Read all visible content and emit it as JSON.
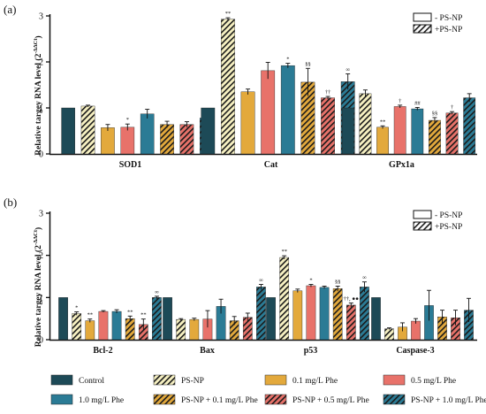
{
  "colors": {
    "control": "#1d4a57",
    "phe01": "#e3a93c",
    "phe05": "#e8726a",
    "phe10": "#2b7b95",
    "psnp": "#f7f1c2",
    "axis": "#111111"
  },
  "legend": {
    "items": [
      {
        "label": "Control",
        "color": "#1d4a57",
        "hatch": false
      },
      {
        "label": "PS-NP",
        "color": "#f7f1c2",
        "hatch": true
      },
      {
        "label": "0.1 mg/L Phe",
        "color": "#e3a93c",
        "hatch": false
      },
      {
        "label": "0.5 mg/L Phe",
        "color": "#e8726a",
        "hatch": false
      },
      {
        "label": "1.0 mg/L Phe",
        "color": "#2b7b95",
        "hatch": false
      },
      {
        "label": "PS-NP + 0.1 mg/L Phe",
        "color": "#e3a93c",
        "hatch": true
      },
      {
        "label": "PS-NP + 0.5 mg/L Phe",
        "color": "#e8726a",
        "hatch": true
      },
      {
        "label": "PS-NP + 1.0 mg/L Phe",
        "color": "#2b7b95",
        "hatch": true
      }
    ]
  },
  "chart_data": [
    {
      "type": "bar",
      "panel_label": "(a)",
      "ylabel": "Relative targey RNA level (2",
      "ylabel_sup": "-ΔΔCt",
      "ylabel_close": ")",
      "ylim": [
        0,
        3
      ],
      "yticks": [
        "0",
        "1",
        "2",
        "3"
      ],
      "inset_legend": [
        "- PS-NP",
        "+PS-NP"
      ],
      "categories": [
        "SOD1",
        "Cat",
        "GPx1a"
      ],
      "series": [
        {
          "name": "Control",
          "values": [
            1.0,
            1.0,
            1.0
          ],
          "errors": [
            0,
            0,
            0
          ],
          "marks": [
            "",
            "",
            ""
          ]
        },
        {
          "name": "PS-NP",
          "values": [
            1.04,
            2.93,
            1.31
          ],
          "errors": [
            0.02,
            0.03,
            0.08
          ],
          "marks": [
            "",
            "**",
            ""
          ]
        },
        {
          "name": "0.1 mg/L Phe",
          "values": [
            0.57,
            1.35,
            0.58
          ],
          "errors": [
            0.07,
            0.06,
            0.03
          ],
          "marks": [
            "",
            "",
            "**"
          ]
        },
        {
          "name": "0.5 mg/L Phe",
          "values": [
            0.58,
            1.81,
            1.03
          ],
          "errors": [
            0.07,
            0.18,
            0.03
          ],
          "marks": [
            "*",
            "",
            "†"
          ]
        },
        {
          "name": "1.0 mg/L Phe",
          "values": [
            0.87,
            1.92,
            0.98
          ],
          "errors": [
            0.1,
            0.05,
            0.03
          ],
          "marks": [
            "",
            "*",
            "##"
          ]
        },
        {
          "name": "PS-NP + 0.1 mg/L Phe",
          "values": [
            0.64,
            1.56,
            0.73
          ],
          "errors": [
            0.07,
            0.3,
            0.06
          ],
          "marks": [
            "",
            "§§",
            "§§"
          ]
        },
        {
          "name": "PS-NP + 0.5 mg/L Phe",
          "values": [
            0.64,
            1.22,
            0.89
          ],
          "errors": [
            0.06,
            0.03,
            0.03
          ],
          "marks": [
            "",
            "††",
            "†"
          ]
        },
        {
          "name": "PS-NP + 1.0 mg/L Phe",
          "values": [
            0.78,
            1.57,
            1.22
          ],
          "errors": [
            0.12,
            0.17,
            0.09
          ],
          "marks": [
            "",
            "∞",
            ""
          ]
        }
      ]
    },
    {
      "type": "bar",
      "panel_label": "(b)",
      "ylabel": "Relative targey RNA level (2",
      "ylabel_sup": "-ΔΔCt",
      "ylabel_close": ")",
      "ylim": [
        0,
        3
      ],
      "yticks": [
        "0",
        "1",
        "2",
        "3"
      ],
      "inset_legend": [
        "- PS-NP",
        "+PS-NP"
      ],
      "categories": [
        "Bcl-2",
        "Bax",
        "p53",
        "Caspase-3"
      ],
      "series": [
        {
          "name": "Control",
          "values": [
            1.0,
            1.0,
            1.0,
            1.0
          ],
          "errors": [
            0,
            0,
            0,
            0
          ],
          "marks": [
            "",
            "",
            "",
            ""
          ]
        },
        {
          "name": "PS-NP",
          "values": [
            0.62,
            0.48,
            1.95,
            0.26
          ],
          "errors": [
            0.04,
            0.02,
            0.04,
            0.02
          ],
          "marks": [
            "*",
            "",
            "**",
            ""
          ]
        },
        {
          "name": "0.1 mg/L Phe",
          "values": [
            0.45,
            0.48,
            1.16,
            0.3
          ],
          "errors": [
            0.04,
            0.03,
            0.04,
            0.1
          ],
          "marks": [
            "**",
            "",
            "",
            ""
          ]
        },
        {
          "name": "0.5 mg/L Phe",
          "values": [
            0.67,
            0.49,
            1.28,
            0.44
          ],
          "errors": [
            0.02,
            0.2,
            0.03,
            0.06
          ],
          "marks": [
            "",
            "",
            "*",
            ""
          ]
        },
        {
          "name": "1.0 mg/L Phe",
          "values": [
            0.67,
            0.79,
            1.24,
            0.81
          ],
          "errors": [
            0.04,
            0.17,
            0.03,
            0.36
          ],
          "marks": [
            "",
            "",
            "",
            ""
          ]
        },
        {
          "name": "PS-NP + 0.1 mg/L Phe",
          "values": [
            0.5,
            0.45,
            1.21,
            0.54
          ],
          "errors": [
            0.06,
            0.1,
            0.06,
            0.16
          ],
          "marks": [
            "**",
            "",
            "§§",
            ""
          ]
        },
        {
          "name": "PS-NP + 0.5 mg/L Phe",
          "values": [
            0.36,
            0.53,
            0.82,
            0.52
          ],
          "errors": [
            0.13,
            0.1,
            0.05,
            0.18
          ],
          "marks": [
            "**",
            "",
            "††, ●●",
            ""
          ]
        },
        {
          "name": "PS-NP + 1.0 mg/L Phe",
          "values": [
            1.0,
            1.25,
            1.25,
            0.7
          ],
          "errors": [
            0.03,
            0.06,
            0.12,
            0.28
          ],
          "marks": [
            "∞",
            "∞",
            "∞",
            ""
          ]
        }
      ]
    }
  ]
}
